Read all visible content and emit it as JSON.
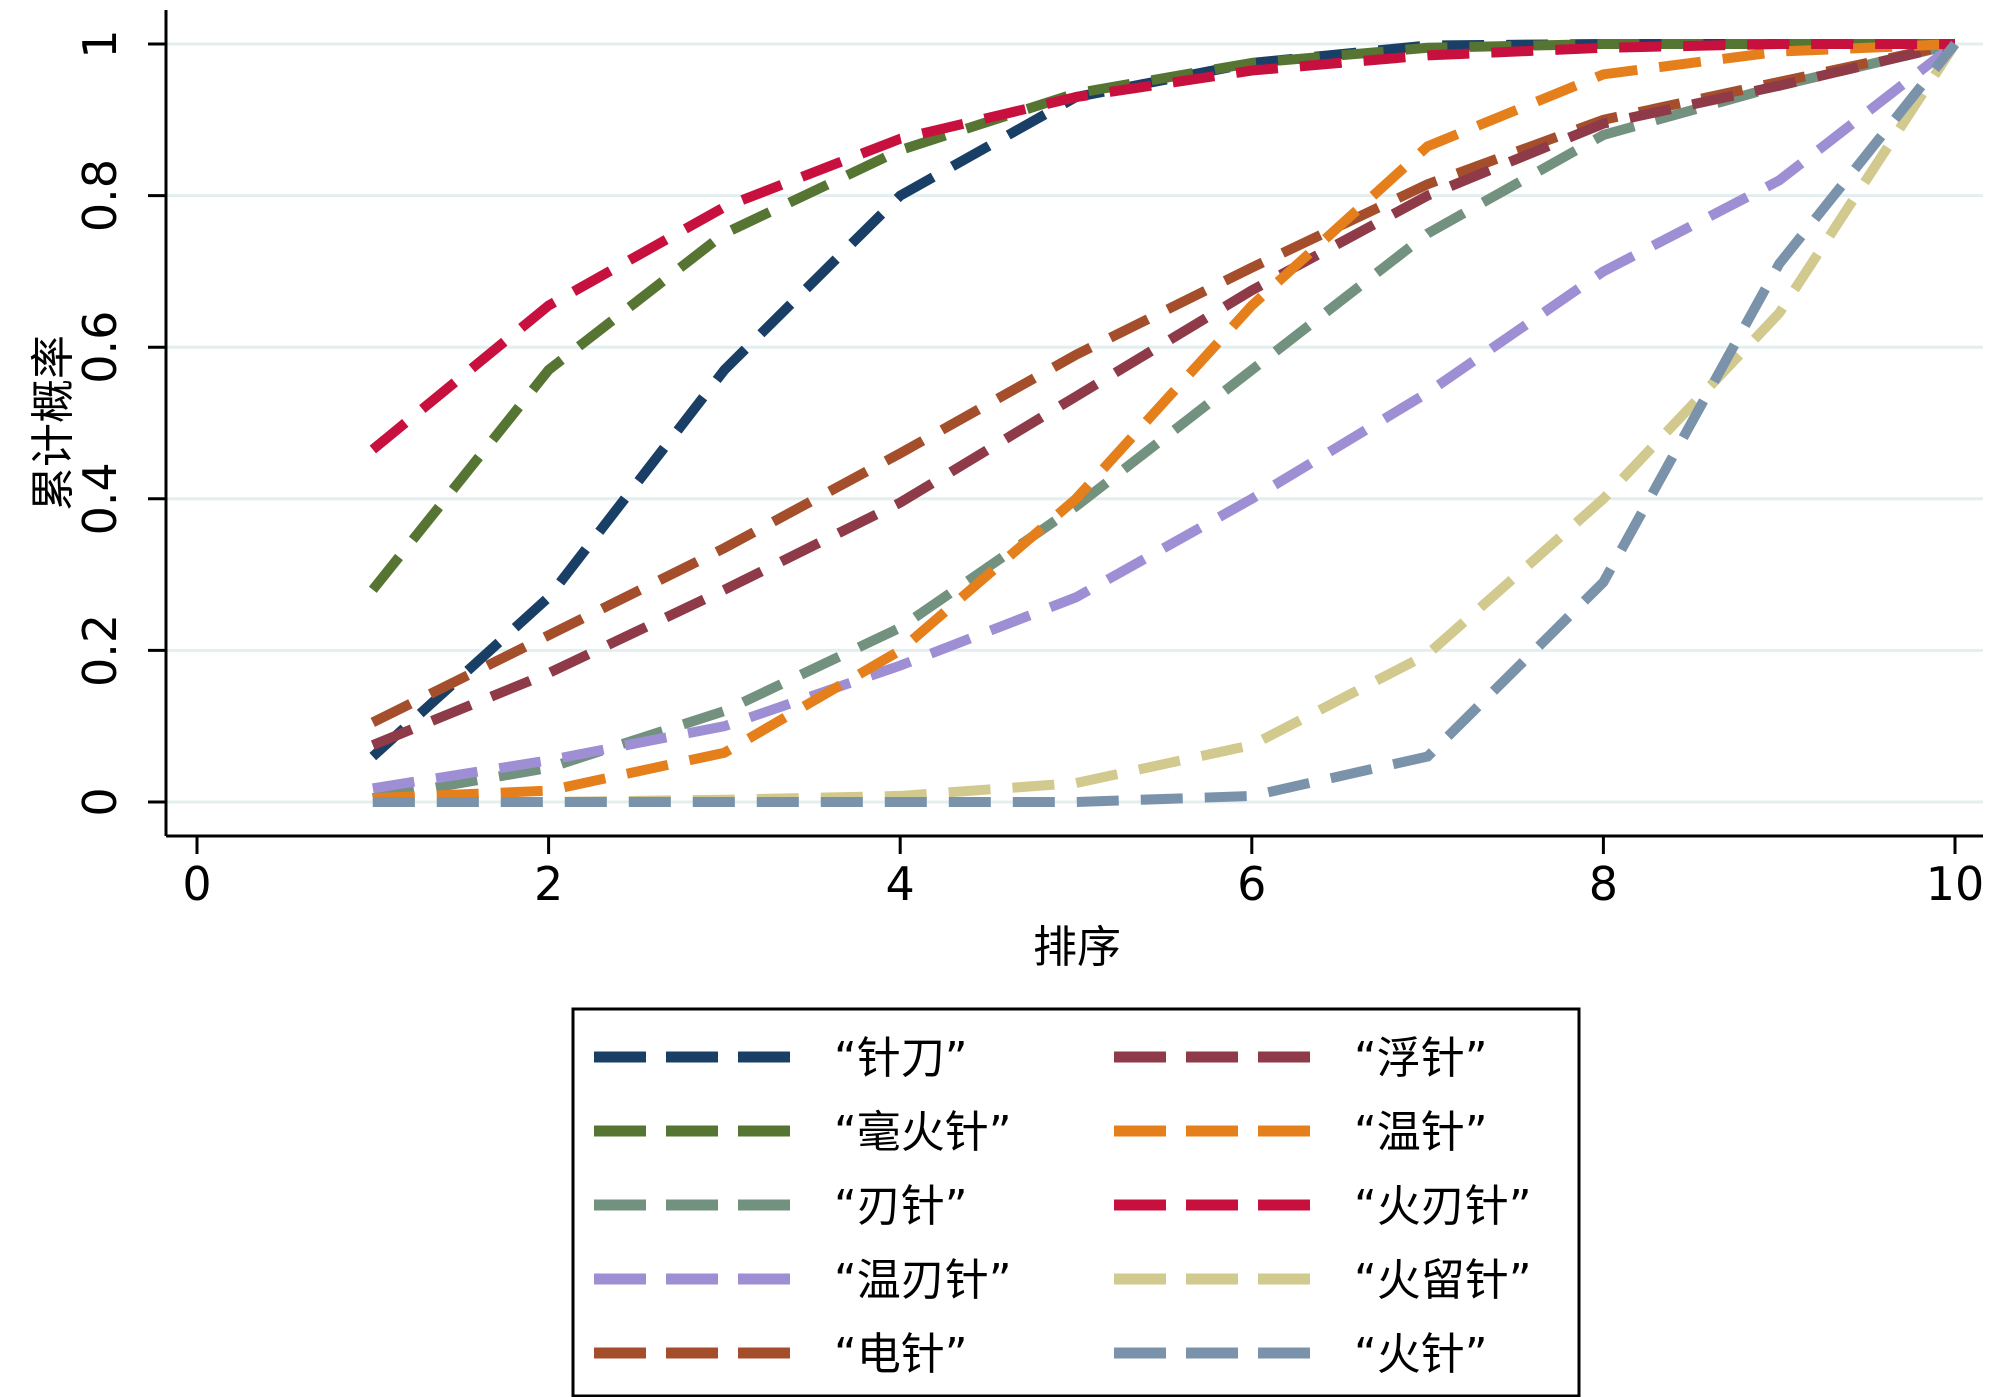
{
  "chart_data": {
    "type": "line",
    "xlabel": "排序",
    "ylabel": "累计概率",
    "xlim": [
      0,
      10
    ],
    "ylim": [
      0,
      1
    ],
    "x_ticks": [
      "0",
      "2",
      "4",
      "6",
      "8",
      "10"
    ],
    "y_ticks": [
      "0",
      "0.2",
      "0.4",
      "0.6",
      "0.8",
      "1"
    ],
    "grid": true,
    "legend_placement": "bottom",
    "x": [
      1,
      2,
      3,
      4,
      5,
      6,
      7,
      8,
      9,
      10
    ],
    "series": [
      {
        "name": "“针刀”",
        "color": "#1a3f66",
        "values": [
          0.06,
          0.27,
          0.57,
          0.8,
          0.93,
          0.975,
          0.998,
          1.0,
          1.0,
          1.0
        ]
      },
      {
        "name": "“毫火针”",
        "color": "#567532",
        "values": [
          0.28,
          0.57,
          0.75,
          0.86,
          0.935,
          0.975,
          0.995,
          1.0,
          1.0,
          1.0
        ]
      },
      {
        "name": "“刃针”",
        "color": "#73917f",
        "values": [
          0.005,
          0.045,
          0.12,
          0.23,
          0.39,
          0.57,
          0.75,
          0.88,
          0.945,
          1.0
        ]
      },
      {
        "name": "“温刃针”",
        "color": "#9e8fd4",
        "values": [
          0.018,
          0.055,
          0.1,
          0.18,
          0.27,
          0.4,
          0.54,
          0.7,
          0.82,
          1.0
        ]
      },
      {
        "name": "“电针”",
        "color": "#a44e2c",
        "values": [
          0.105,
          0.22,
          0.335,
          0.46,
          0.59,
          0.705,
          0.815,
          0.9,
          0.95,
          1.0
        ]
      },
      {
        "name": "“浮针”",
        "color": "#8e3a48",
        "values": [
          0.075,
          0.17,
          0.28,
          0.395,
          0.535,
          0.675,
          0.8,
          0.895,
          0.945,
          1.0
        ]
      },
      {
        "name": "“温针”",
        "color": "#e57f1b",
        "values": [
          0.005,
          0.015,
          0.065,
          0.2,
          0.4,
          0.655,
          0.865,
          0.96,
          0.99,
          1.0
        ]
      },
      {
        "name": "“火刃针”",
        "color": "#c8103e",
        "values": [
          0.465,
          0.655,
          0.785,
          0.875,
          0.93,
          0.965,
          0.985,
          0.995,
          1.0,
          1.0
        ]
      },
      {
        "name": "“火留针”",
        "color": "#d2c98e",
        "values": [
          0.0,
          0.0,
          0.003,
          0.008,
          0.025,
          0.075,
          0.195,
          0.4,
          0.645,
          1.0
        ]
      },
      {
        "name": "“火针”",
        "color": "#7a93ab",
        "values": [
          0.0,
          0.0,
          0.0,
          0.0,
          0.0,
          0.008,
          0.06,
          0.29,
          0.71,
          1.0
        ]
      }
    ]
  }
}
